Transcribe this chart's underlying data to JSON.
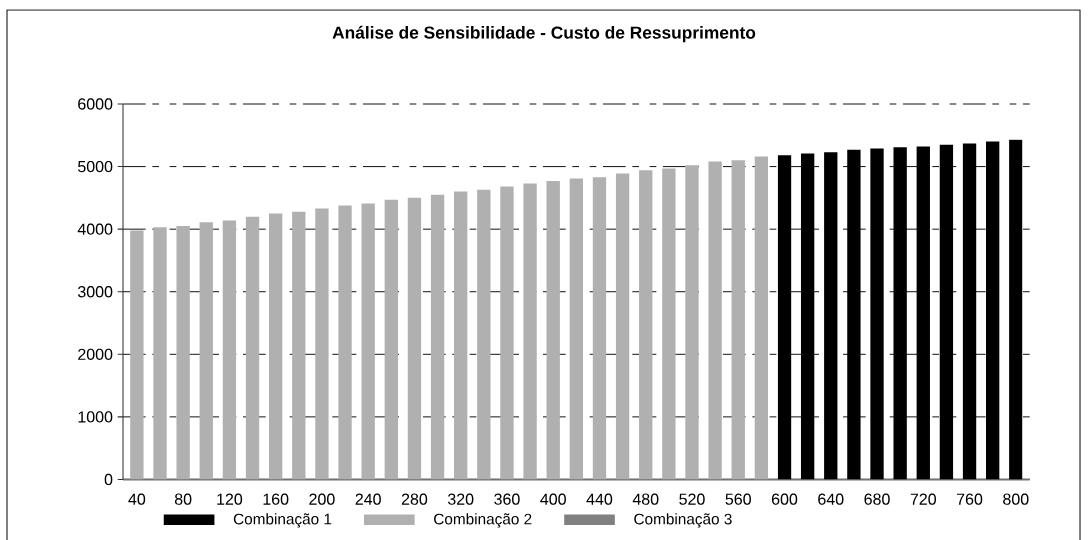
{
  "chart_data": {
    "type": "bar",
    "title": "Análise de Sensibilidade - Custo de Ressuprimento",
    "categories": [
      "40",
      null,
      "80",
      null,
      "120",
      null,
      "160",
      null,
      "200",
      null,
      "240",
      null,
      "280",
      null,
      "320",
      null,
      "360",
      null,
      "400",
      null,
      "440",
      null,
      "480",
      null,
      "520",
      null,
      "560",
      null,
      "600",
      null,
      "640",
      null,
      "680",
      null,
      "720",
      null,
      "760",
      null,
      "800"
    ],
    "series": [
      {
        "name": "Combinação 1",
        "color": "#000000",
        "values": [
          null,
          null,
          null,
          null,
          null,
          null,
          null,
          null,
          null,
          null,
          null,
          null,
          null,
          null,
          null,
          null,
          null,
          null,
          null,
          null,
          null,
          null,
          null,
          null,
          null,
          null,
          null,
          null,
          5180,
          5210,
          5230,
          5270,
          5290,
          5310,
          5320,
          5350,
          5370,
          5400,
          5430
        ]
      },
      {
        "name": "Combinação 2",
        "color": "#b0b0b0",
        "values": [
          3980,
          4030,
          4050,
          4110,
          4140,
          4200,
          4250,
          4280,
          4330,
          4380,
          4410,
          4470,
          4500,
          4550,
          4600,
          4630,
          4680,
          4730,
          4770,
          4810,
          4830,
          4890,
          4940,
          4970,
          5020,
          5080,
          5100,
          5160,
          null,
          null,
          null,
          null,
          null,
          null,
          null,
          null,
          null,
          null,
          null
        ]
      },
      {
        "name": "Combinação 3",
        "color": "#808080",
        "values": [
          null,
          null,
          null,
          null,
          null,
          null,
          null,
          null,
          null,
          null,
          null,
          null,
          null,
          null,
          null,
          null,
          null,
          null,
          null,
          null,
          null,
          null,
          null,
          null,
          null,
          null,
          null,
          null,
          null,
          null,
          null,
          null,
          null,
          null,
          null,
          null,
          null,
          null,
          null
        ]
      }
    ],
    "ylim": [
      0,
      6000
    ],
    "yticks": [
      0,
      1000,
      2000,
      3000,
      4000,
      5000,
      6000
    ],
    "grid": "y",
    "legend": "bottom"
  }
}
